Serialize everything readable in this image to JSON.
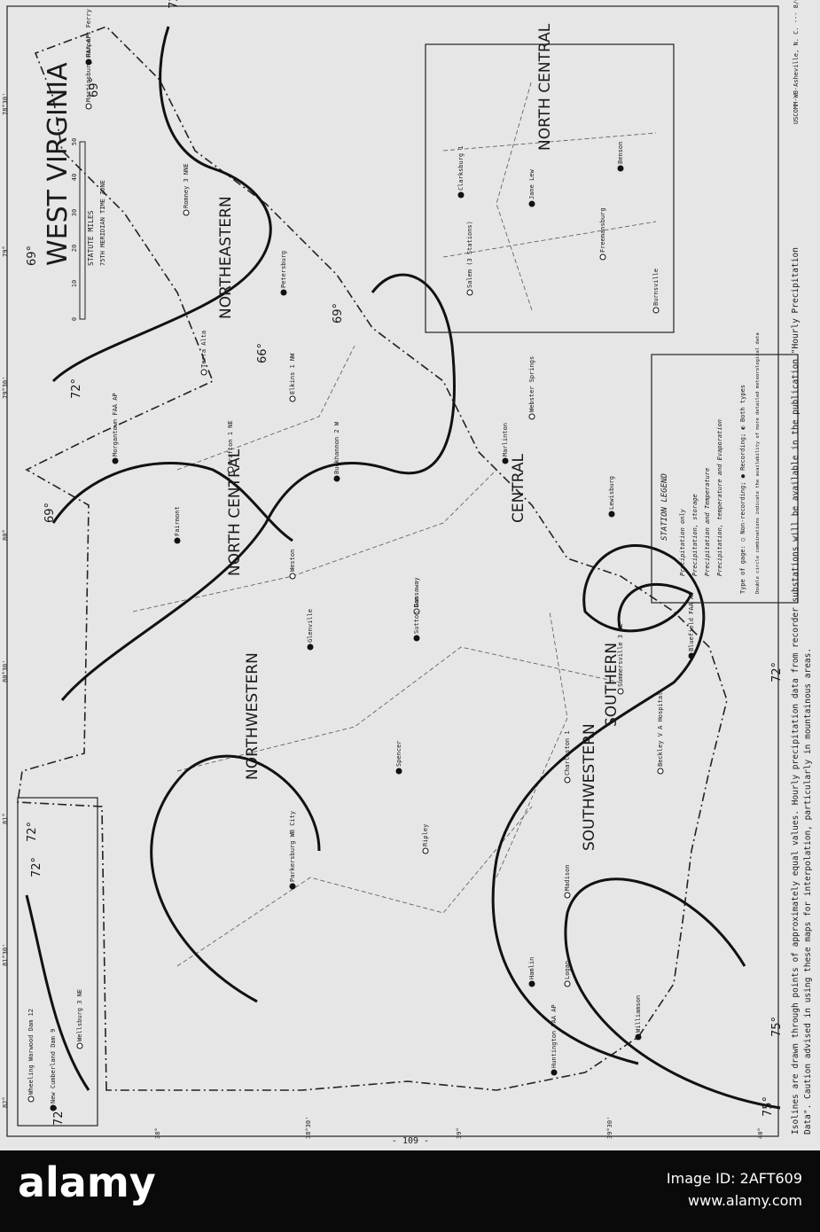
{
  "title": "WEST VIRGINIA",
  "scale": {
    "title": "STATUTE MILES",
    "zone": "75TH MERIDIAN TIME ZONE",
    "ticks": [
      "0",
      "10",
      "20",
      "30",
      "40",
      "50"
    ]
  },
  "regions": [
    "NORTHWESTERN",
    "NORTH CENTRAL",
    "NORTHEASTERN",
    "CENTRAL",
    "SOUTHWESTERN",
    "SOUTHERN",
    "NORTH CENTRAL"
  ],
  "isolines": [
    "72°",
    "72°",
    "72°",
    "72°",
    "69°",
    "69°",
    "69°",
    "69°",
    "66°",
    "75°",
    "75°",
    "72°",
    "72°"
  ],
  "stations": [
    "Huntington FAA AP",
    "Charleston 1",
    "Morgantown FAA AP",
    "Elkins 1 NW",
    "Parkersburg WB City",
    "Beckley V A Hospital",
    "Bluefield FAA AP",
    "Logan",
    "Williamson",
    "Martinsburg FAA AP",
    "Petersburg",
    "Webster Springs",
    "Lewisburg",
    "Summersville 3 NE",
    "Spencer",
    "Ripley",
    "Glenville",
    "Weston",
    "Buckhannon 2 W",
    "Romney 3 NNE",
    "Harpers Ferry",
    "Terra Alta",
    "Fairmont",
    "Grafton 1 NE",
    "Marlinton",
    "Madison",
    "Hamlin",
    "Gassaway",
    "Sutton Dam",
    "Wheeling Warwood Dam 12",
    "New Cumberland Dam 9",
    "Wellsburg 3 NE",
    "Clarksburg 1",
    "Salem (3 Stations)",
    "Jane Lew",
    "Freemansburg",
    "Benson",
    "Burnsville"
  ],
  "legend": {
    "title": "STATION LEGEND",
    "items": [
      "Precipitation only",
      "Precipitation, storage",
      "Precipitation and Temperature",
      "Precipitation, temperature and Evaporation"
    ],
    "gage": "Type of gage: ○ Non-recording; ● Recording; ◐ Both types",
    "note": "Double circle combinations indicate the availability of more detailed meteorological data"
  },
  "graticule": [
    "82°",
    "81°30'",
    "81°",
    "80°30'",
    "80°",
    "79°30'",
    "79°",
    "78°30'",
    "38°",
    "38°30'",
    "39°",
    "39°30'",
    "40°"
  ],
  "footnote": [
    "Isolines are drawn through points of approximately equal values. Hourly precipitation data from recorder substations will be available in the publication \"Hourly Precipitation",
    "Data\". Caution advised in using these maps for interpolation, particularly in mountainous areas."
  ],
  "imprint": "USCOMM-WB-Asheville, N. C. --- 8/61",
  "page_number": "- 109 -",
  "watermark": {
    "logo": "alamy",
    "id": "Image ID: 2AFT609",
    "url": "www.alamy.com"
  }
}
